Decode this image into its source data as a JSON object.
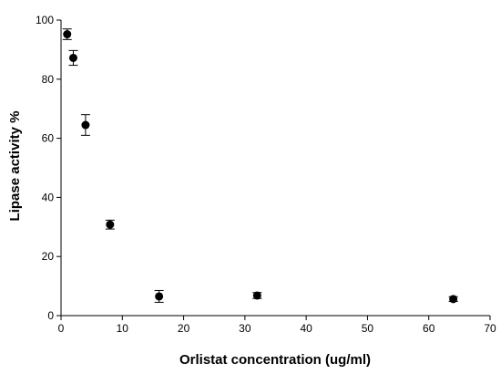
{
  "chart_data": {
    "type": "scatter",
    "title": "",
    "xlabel": "Orlistat concentration (ug/ml)",
    "ylabel": "Lipase activity %",
    "xlim": [
      0,
      70
    ],
    "ylim": [
      0,
      100
    ],
    "x_ticks": [
      0,
      10,
      20,
      30,
      40,
      50,
      60,
      70
    ],
    "y_ticks": [
      0,
      20,
      40,
      60,
      80,
      100
    ],
    "grid": false,
    "legend": "none",
    "marker_color": "#000000",
    "series": [
      {
        "points": [
          {
            "x": 1,
            "y": 95.2,
            "err": 1.8
          },
          {
            "x": 2,
            "y": 87.2,
            "err": 2.5
          },
          {
            "x": 4,
            "y": 64.5,
            "err": 3.5
          },
          {
            "x": 8,
            "y": 30.8,
            "err": 1.5
          },
          {
            "x": 16,
            "y": 6.5,
            "err": 2.0
          },
          {
            "x": 32,
            "y": 6.8,
            "err": 1.0
          },
          {
            "x": 64,
            "y": 5.6,
            "err": 0.8
          }
        ]
      }
    ]
  }
}
